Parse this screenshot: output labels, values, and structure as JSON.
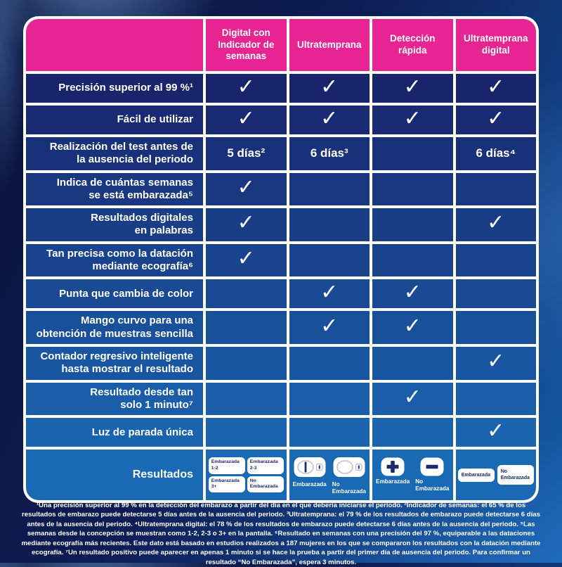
{
  "colors": {
    "pink": "#e72492",
    "row_top": "#18256b",
    "row_bottom": "#1a69b5",
    "navy_text": "#1b2a6b",
    "check_symbol": "✓"
  },
  "chart_data": {
    "type": "table",
    "title": "",
    "columns": [
      "Digital con\nIndicador de\nsemanas",
      "Ultratemprana",
      "Detección\nrápida",
      "Ultratemprana\ndigital"
    ],
    "rows": [
      {
        "label": "Precisión superior al 99 %¹",
        "values": [
          "✓",
          "✓",
          "✓",
          "✓"
        ]
      },
      {
        "label": "Fácil de utilizar",
        "values": [
          "✓",
          "✓",
          "✓",
          "✓"
        ]
      },
      {
        "label": "Realización del test antes de\nla ausencia del periodo",
        "values": [
          "5 días²",
          "6 días³",
          "",
          "6 días⁴"
        ]
      },
      {
        "label": "Indica de cuántas semanas\nse está embarazada⁵",
        "values": [
          "✓",
          "",
          "",
          ""
        ]
      },
      {
        "label": "Resultados digitales\nen palabras",
        "values": [
          "✓",
          "",
          "",
          "✓"
        ]
      },
      {
        "label": "Tan precisa como la datación\nmediante ecografía⁶",
        "values": [
          "✓",
          "",
          "",
          ""
        ]
      },
      {
        "label": "Punta que cambia de color",
        "values": [
          "",
          "✓",
          "✓",
          ""
        ]
      },
      {
        "label": "Mango curvo para una\nobtención de muestras sencilla",
        "values": [
          "",
          "✓",
          "✓",
          ""
        ]
      },
      {
        "label": "Contador regresivo inteligente\nhasta mostrar el resultado",
        "values": [
          "",
          "",
          "",
          "✓"
        ]
      },
      {
        "label": "Resultado desde tan\nsolo 1 minuto⁷",
        "values": [
          "",
          "",
          "✓",
          ""
        ]
      },
      {
        "label": "Luz de parada única",
        "values": [
          "",
          "",
          "",
          "✓"
        ]
      }
    ]
  },
  "results": {
    "label": "Resultados",
    "columns": [
      {
        "type": "week-badges",
        "badges": [
          "Embarazada\n1-2",
          "Embarazada\n2-3",
          "Embarazada\n3+",
          "No\nEmbarazada"
        ]
      },
      {
        "type": "sticks",
        "items": [
          {
            "icon": "positive-stick-icon",
            "label": "Embarazada"
          },
          {
            "icon": "negative-stick-icon",
            "label": "No\nEmbarazada"
          }
        ]
      },
      {
        "type": "plusminus",
        "items": [
          {
            "icon": "plus-result-icon",
            "label": "Embarazada"
          },
          {
            "icon": "minus-result-icon",
            "label": "No\nEmbarazada"
          }
        ]
      },
      {
        "type": "word-badges",
        "badges": [
          "Embarazada",
          "No\nEmbarazada"
        ]
      }
    ]
  },
  "footnotes": "¹Una precisión superior al 99 % en la detección del embarazo a partir del día en el que debería iniciarse el periodo. ²Indicador de semanas: el 65 % de los resultados de embarazo puede detectarse 5 días antes de la ausencia del periodo. ³Ultratemprana: el 79 % de los resultados de embarazo puede detectarse 6 días antes de la ausencia del periodo. ⁴Ultratemprana digital: el 78 % de los resultados de embarazo puede detectarse 6 días antes de la ausencia del periodo. ⁵Las semanas desde la concepción se muestran como 1-2, 2-3 o 3+ en la pantalla. ⁶Resultado en semanas con una precisión del 97 %, equiparable a las dataciones mediante ecografía más recientes. Este dato está basado en estudios realizados a 187 mujeres en los que se compararon los resultados con la datación mediante ecografía. ⁷Un resultado positivo puede aparecer en apenas 1 minuto si se hace la prueba a partir del primer día de ausencia del periodo. Para confirmar un resultado “No Embarazada”, espera 3 minutos."
}
